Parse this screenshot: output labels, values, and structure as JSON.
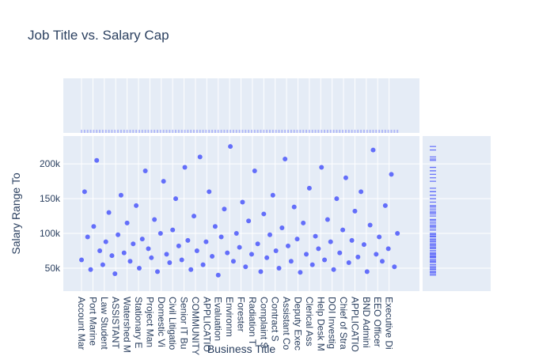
{
  "chart_data": {
    "type": "scatter",
    "title": "Job Title vs. Salary Cap",
    "x_label": "Business Title",
    "y_label": "Salary Range To",
    "color": "#636efa",
    "grid": true,
    "marginal_x": "histogram",
    "marginal_y": "rug",
    "xlim": [
      -24,
      445
    ],
    "ylim": [
      17000,
      240000
    ],
    "xticks": [
      {
        "value": 0,
        "label": "Account Mar"
      },
      {
        "value": 15,
        "label": "Port Marine"
      },
      {
        "value": 30,
        "label": "Law Student"
      },
      {
        "value": 45,
        "label": "ASSISTANT"
      },
      {
        "value": 60,
        "label": "Watershed M"
      },
      {
        "value": 75,
        "label": "Stationary E"
      },
      {
        "value": 90,
        "label": "Project Man"
      },
      {
        "value": 105,
        "label": "Domestic Vi"
      },
      {
        "value": 120,
        "label": "Civil Litigatio"
      },
      {
        "value": 135,
        "label": "Senior IT Bu"
      },
      {
        "value": 150,
        "label": "COMMUNITY"
      },
      {
        "value": 165,
        "label": "APPLICATIO"
      },
      {
        "value": 180,
        "label": "Evaluation"
      },
      {
        "value": 195,
        "label": "Environm"
      },
      {
        "value": 210,
        "label": "Forester"
      },
      {
        "value": 225,
        "label": "Radiation T"
      },
      {
        "value": 240,
        "label": "Complaint S"
      },
      {
        "value": 255,
        "label": "Contract S"
      },
      {
        "value": 270,
        "label": "Assistant Co"
      },
      {
        "value": 285,
        "label": "Deputy Exec"
      },
      {
        "value": 300,
        "label": "Clerical Ass"
      },
      {
        "value": 315,
        "label": "Help Desk M"
      },
      {
        "value": 330,
        "label": "DOI Investig"
      },
      {
        "value": 345,
        "label": "Chief of Stra"
      },
      {
        "value": 360,
        "label": "APPLICATIO"
      },
      {
        "value": 375,
        "label": "BND Admini"
      },
      {
        "value": 390,
        "label": "EEO Officer"
      },
      {
        "value": 405,
        "label": "Executive Di"
      }
    ],
    "yticks": [
      {
        "value": 50000,
        "label": "50k"
      },
      {
        "value": 100000,
        "label": "100k"
      },
      {
        "value": 150000,
        "label": "150k"
      },
      {
        "value": 200000,
        "label": "200k"
      }
    ],
    "x": [
      0,
      4,
      8,
      12,
      16,
      20,
      24,
      28,
      32,
      36,
      40,
      44,
      48,
      52,
      56,
      60,
      64,
      68,
      72,
      76,
      80,
      84,
      88,
      92,
      96,
      100,
      104,
      108,
      112,
      116,
      120,
      124,
      128,
      132,
      136,
      140,
      144,
      148,
      152,
      156,
      160,
      164,
      168,
      172,
      176,
      180,
      184,
      188,
      192,
      196,
      200,
      204,
      208,
      212,
      216,
      220,
      224,
      228,
      232,
      236,
      240,
      244,
      248,
      252,
      256,
      260,
      264,
      268,
      272,
      276,
      280,
      284,
      288,
      292,
      296,
      300,
      304,
      308,
      312,
      316,
      320,
      324,
      328,
      332,
      336,
      340,
      344,
      348,
      352,
      356,
      360,
      364,
      368,
      372,
      376,
      380,
      384,
      388,
      392,
      396,
      400,
      404,
      408,
      412,
      416
    ],
    "values": [
      62000,
      160000,
      95000,
      48000,
      110000,
      205000,
      75000,
      55000,
      88000,
      130000,
      68000,
      42000,
      98000,
      155000,
      72000,
      115000,
      60000,
      85000,
      140000,
      50000,
      92000,
      190000,
      78000,
      65000,
      120000,
      45000,
      100000,
      175000,
      70000,
      58000,
      105000,
      150000,
      82000,
      62000,
      195000,
      90000,
      48000,
      125000,
      75000,
      210000,
      55000,
      88000,
      160000,
      67000,
      110000,
      40000,
      95000,
      135000,
      72000,
      225000,
      60000,
      100000,
      80000,
      145000,
      52000,
      118000,
      70000,
      190000,
      85000,
      45000,
      128000,
      65000,
      98000,
      155000,
      75000,
      50000,
      108000,
      207000,
      82000,
      60000,
      138000,
      92000,
      44000,
      115000,
      70000,
      165000,
      55000,
      96000,
      78000,
      195000,
      62000,
      120000,
      88000,
      48000,
      150000,
      72000,
      105000,
      180000,
      58000,
      90000,
      132000,
      66000,
      160000,
      84000,
      45000,
      112000,
      220000,
      70000,
      95000,
      60000,
      140000,
      78000,
      185000,
      52000,
      100000
    ]
  }
}
